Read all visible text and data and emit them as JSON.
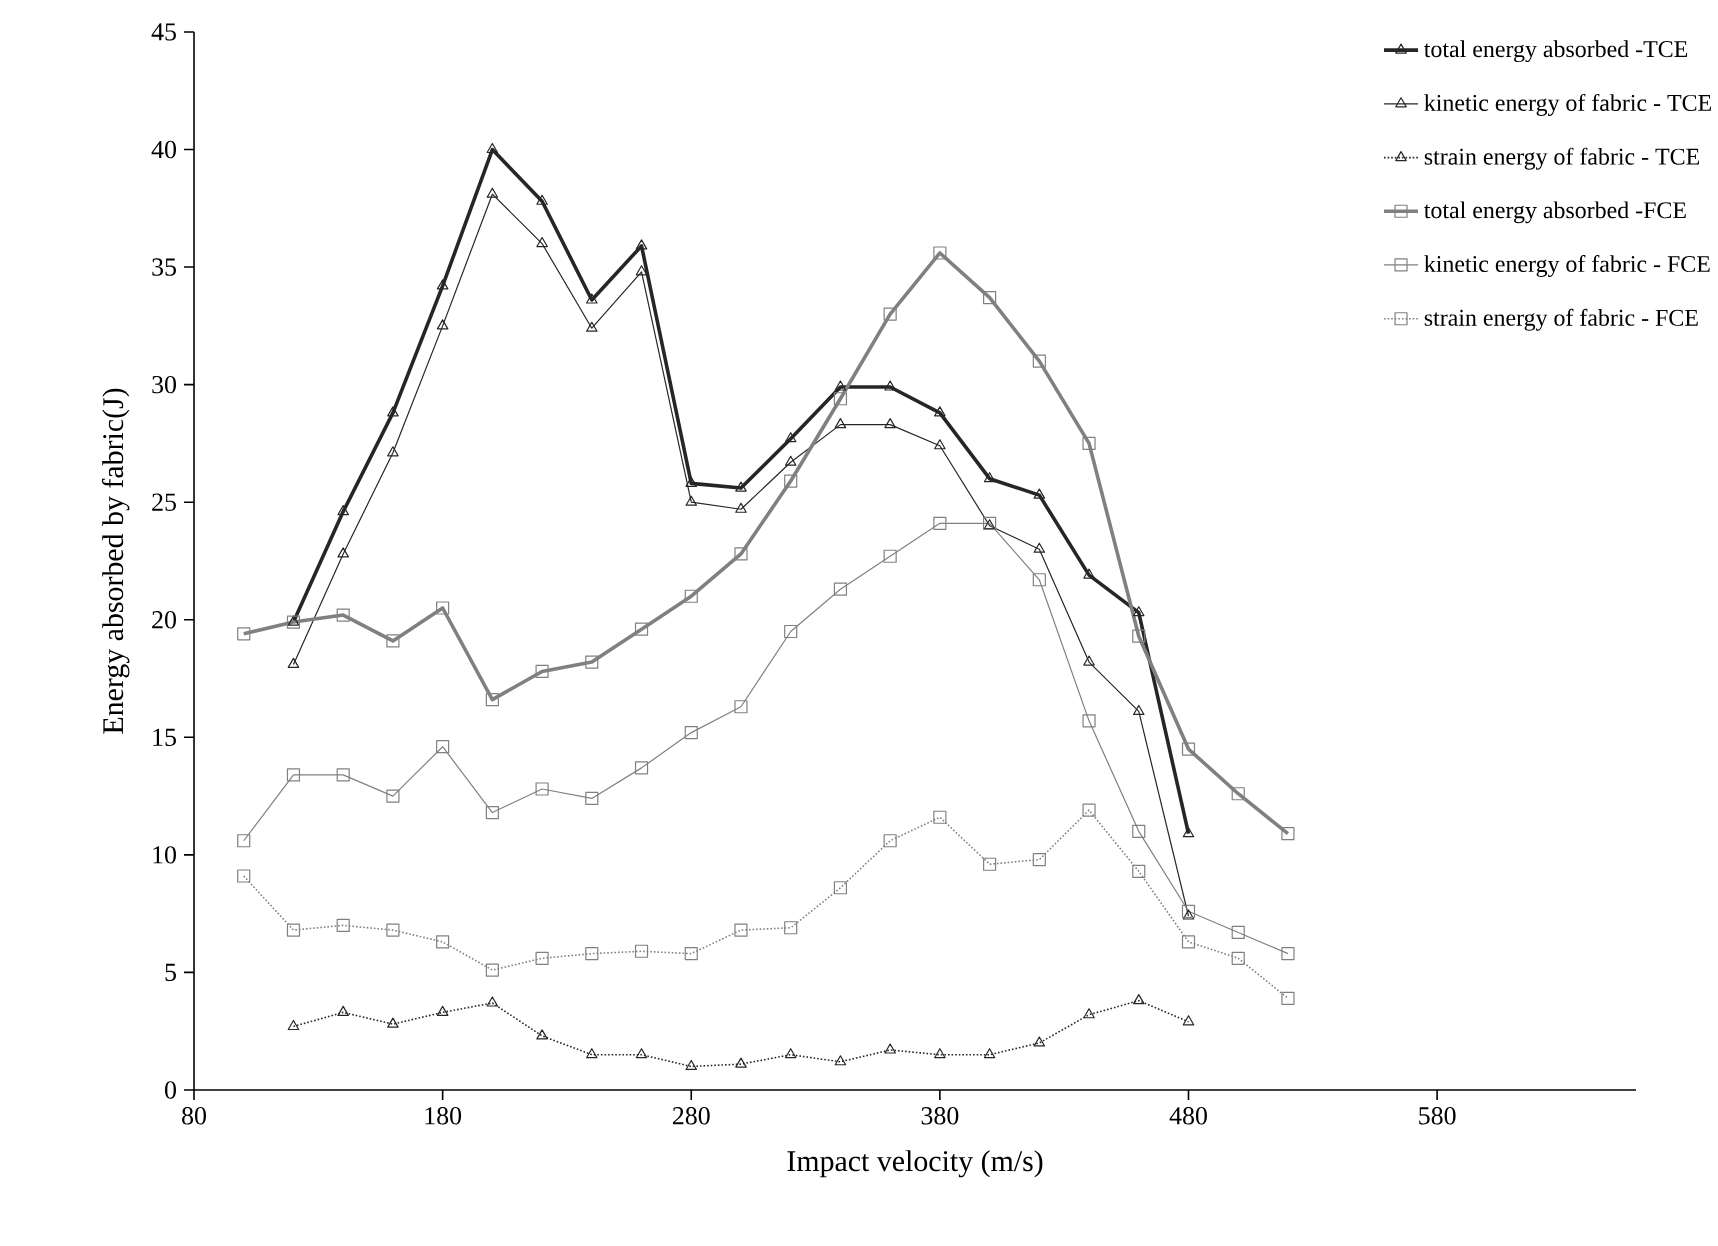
{
  "chart_data": {
    "type": "line",
    "xlabel": "Impact velocity (m/s)",
    "ylabel": "Energy absorbed by fabric(J)",
    "xlim": [
      80,
      660
    ],
    "xticks": [
      80,
      180,
      280,
      380,
      480,
      580
    ],
    "ylim": [
      0,
      45
    ],
    "yticks": [
      0,
      5,
      10,
      15,
      20,
      25,
      30,
      35,
      40,
      45
    ],
    "legend": "top right",
    "grid": false,
    "series": [
      {
        "name": "total energy absorbed -TCE",
        "color": "#262626",
        "marker": "triangle",
        "line_style": "solid",
        "x": [
          120,
          140,
          160,
          180,
          200,
          220,
          240,
          260,
          280,
          300,
          320,
          340,
          360,
          380,
          400,
          420,
          440,
          460,
          480
        ],
        "values": [
          19.9,
          24.6,
          28.8,
          34.2,
          40.0,
          37.8,
          33.6,
          35.9,
          25.8,
          25.6,
          27.7,
          29.9,
          29.9,
          28.8,
          26.0,
          25.3,
          21.9,
          20.3,
          10.9
        ]
      },
      {
        "name": "kinetic energy of fabric - TCE",
        "color": "#262626",
        "marker": "triangle",
        "line_style": "solid",
        "x": [
          120,
          140,
          160,
          180,
          200,
          220,
          240,
          260,
          280,
          300,
          320,
          340,
          360,
          380,
          400,
          420,
          440,
          460,
          480
        ],
        "values": [
          18.1,
          22.8,
          27.1,
          32.5,
          38.1,
          36.0,
          32.4,
          34.8,
          25.0,
          24.7,
          26.7,
          28.3,
          28.3,
          27.4,
          24.0,
          23.0,
          18.2,
          16.1,
          7.4
        ]
      },
      {
        "name": "strain energy of fabric - TCE",
        "color": "#262626",
        "marker": "triangle",
        "line_style": "dotted",
        "x": [
          120,
          140,
          160,
          180,
          200,
          220,
          240,
          260,
          280,
          300,
          320,
          340,
          360,
          380,
          400,
          420,
          440,
          460,
          480
        ],
        "values": [
          2.7,
          3.3,
          2.8,
          3.3,
          3.7,
          2.3,
          1.5,
          1.5,
          1.0,
          1.1,
          1.5,
          1.2,
          1.7,
          1.5,
          1.5,
          2.0,
          3.2,
          3.8,
          2.9
        ]
      },
      {
        "name": "total energy absorbed -FCE",
        "color": "#808080",
        "marker": "square",
        "line_style": "solid",
        "x": [
          100,
          120,
          140,
          160,
          180,
          200,
          220,
          240,
          260,
          280,
          300,
          320,
          340,
          360,
          380,
          400,
          420,
          440,
          460,
          480,
          500,
          520
        ],
        "values": [
          19.4,
          19.9,
          20.2,
          19.1,
          20.5,
          16.6,
          17.8,
          18.2,
          19.6,
          21.0,
          22.8,
          25.9,
          29.4,
          33.0,
          35.6,
          33.7,
          31.0,
          27.5,
          19.3,
          14.5,
          12.6,
          10.9
        ]
      },
      {
        "name": "kinetic energy of fabric - FCE",
        "color": "#808080",
        "marker": "square",
        "line_style": "solid",
        "x": [
          100,
          120,
          140,
          160,
          180,
          200,
          220,
          240,
          260,
          280,
          300,
          320,
          340,
          360,
          380,
          400,
          420,
          440,
          460,
          480,
          500,
          520
        ],
        "values": [
          10.6,
          13.4,
          13.4,
          12.5,
          14.6,
          11.8,
          12.8,
          12.4,
          13.7,
          15.2,
          16.3,
          19.5,
          21.3,
          22.7,
          24.1,
          24.1,
          21.7,
          15.7,
          11.0,
          7.6,
          6.7,
          5.8
        ]
      },
      {
        "name": "strain energy of fabric - FCE",
        "color": "#808080",
        "marker": "square",
        "line_style": "dotted",
        "x": [
          100,
          120,
          140,
          160,
          180,
          200,
          220,
          240,
          260,
          280,
          300,
          320,
          340,
          360,
          380,
          400,
          420,
          440,
          460,
          480,
          500,
          520
        ],
        "values": [
          9.1,
          6.8,
          7.0,
          6.8,
          6.3,
          5.1,
          5.6,
          5.8,
          5.9,
          5.8,
          6.8,
          6.9,
          8.6,
          10.6,
          11.6,
          9.6,
          9.8,
          11.9,
          9.3,
          6.3,
          5.6,
          3.9
        ]
      }
    ]
  }
}
